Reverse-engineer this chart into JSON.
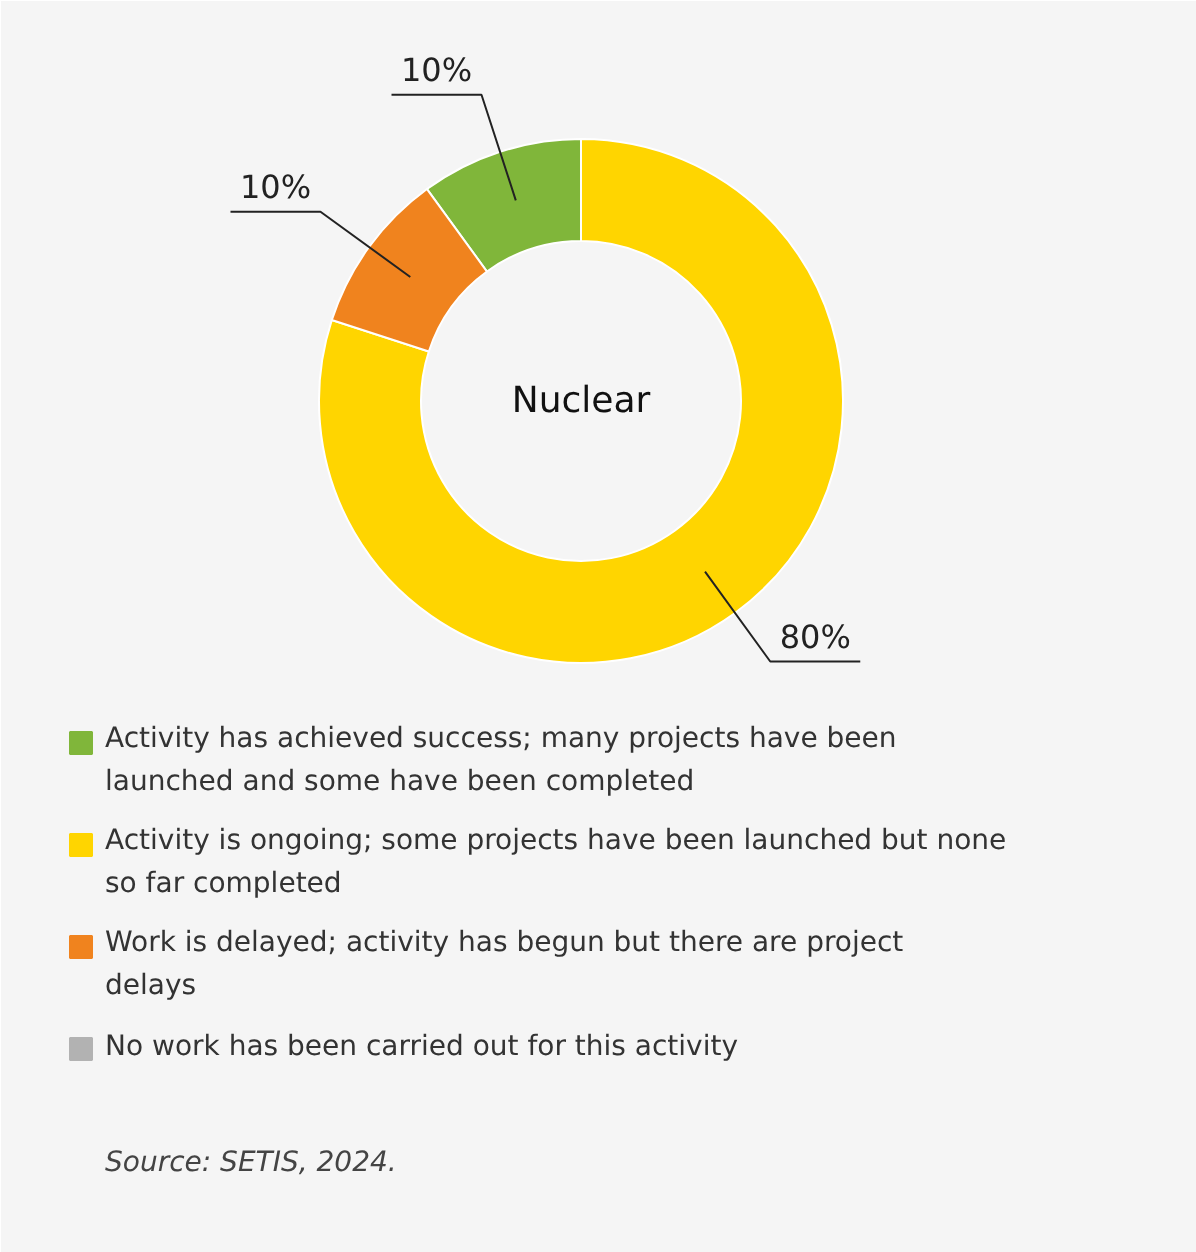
{
  "chart_data": {
    "type": "donut",
    "title": "Nuclear",
    "categories": [
      "Activity has achieved success; many projects have been launched and some have been completed",
      "Activity is ongoing; some projects have been launched but none so far completed",
      "Work is delayed; activity has begun but there are project delays",
      "No work has been carried out for this activity"
    ],
    "values": [
      10,
      80,
      10,
      0
    ],
    "colors": [
      "#80b63a",
      "#ffd500",
      "#f0831e",
      "#b2b2b2"
    ],
    "value_labels": [
      "10%",
      "80%",
      "10%",
      null
    ],
    "legend": "bottom",
    "annotations": [
      "Source: SETIS, 2024."
    ]
  }
}
